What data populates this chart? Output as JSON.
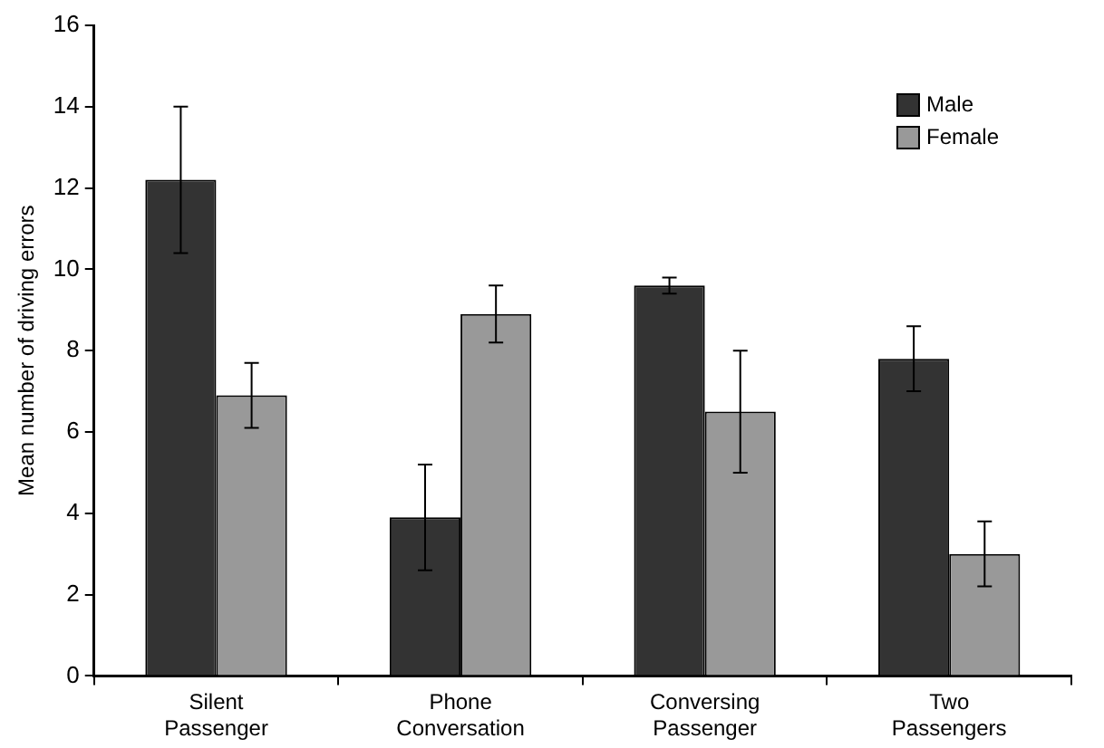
{
  "chart_data": {
    "type": "bar",
    "ylabel": "Mean number of driving errors",
    "categories": [
      "Silent Passenger",
      "Phone Conversation",
      "Conversing Passenger",
      "Two Passengers"
    ],
    "series": [
      {
        "name": "Male",
        "color": "#333333",
        "values": [
          12.2,
          3.9,
          9.6,
          7.8
        ],
        "errors": [
          1.8,
          1.3,
          0.2,
          0.8
        ]
      },
      {
        "name": "Female",
        "color": "#999999",
        "values": [
          6.9,
          8.9,
          6.5,
          3.0
        ],
        "errors": [
          0.8,
          0.7,
          1.5,
          0.8
        ]
      }
    ],
    "ylim": [
      0,
      16
    ],
    "yticks": [
      0,
      2,
      4,
      6,
      8,
      10,
      12,
      14,
      16
    ],
    "grid": false,
    "legend": "top right"
  }
}
